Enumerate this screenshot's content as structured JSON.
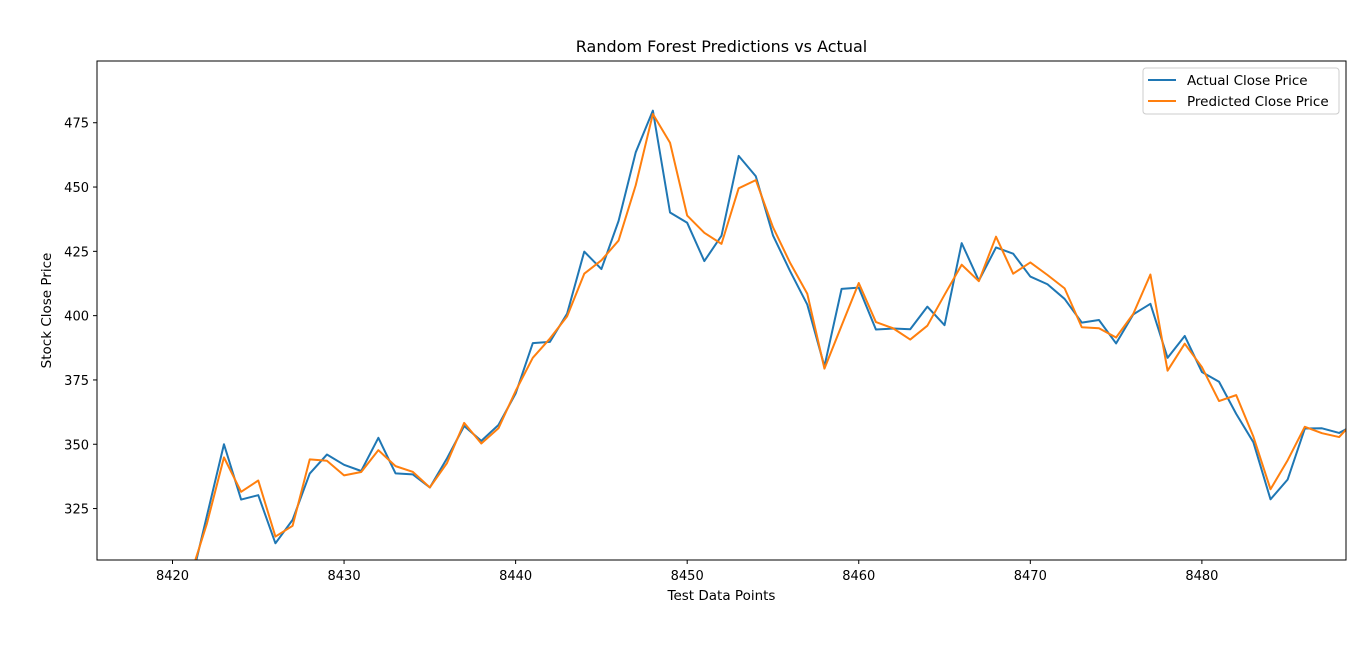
{
  "chart_data": {
    "type": "line",
    "title": "Random Forest Predictions vs Actual",
    "xlabel": "Test Data Points",
    "ylabel": "Stock Close Price",
    "xlim": [
      8415.6,
      8488.4
    ],
    "ylim": [
      305,
      499
    ],
    "xticks": [
      8420,
      8430,
      8440,
      8450,
      8460,
      8470,
      8480
    ],
    "yticks": [
      325,
      350,
      375,
      400,
      425,
      450,
      475
    ],
    "grid": false,
    "legend_position": "top-right",
    "x": [
      8421,
      8422,
      8423,
      8424,
      8425,
      8426,
      8427,
      8428,
      8429,
      8430,
      8431,
      8432,
      8433,
      8434,
      8435,
      8436,
      8437,
      8438,
      8439,
      8440,
      8441,
      8442,
      8443,
      8444,
      8445,
      8446,
      8447,
      8448,
      8449,
      8450,
      8451,
      8452,
      8453,
      8454,
      8455,
      8456,
      8457,
      8458,
      8459,
      8460,
      8461,
      8462,
      8463,
      8464,
      8465,
      8466,
      8467,
      8468,
      8469,
      8470,
      8471,
      8472,
      8473,
      8474,
      8475,
      8476,
      8477,
      8478,
      8479,
      8480,
      8481,
      8482,
      8483,
      8484,
      8485,
      8486,
      8487,
      8488,
      8489
    ],
    "series": [
      {
        "name": "Actual Close Price",
        "color": "#1f77b4",
        "values": [
          294,
          322,
          350,
          328.5,
          330.2,
          311.5,
          320.6,
          338.6,
          346,
          342,
          339.6,
          352.5,
          338.7,
          338.3,
          333.2,
          344.5,
          357.1,
          351.3,
          357.5,
          369.7,
          389.3,
          389.8,
          400.8,
          424.9,
          418.1,
          436.8,
          463.5,
          479.7,
          440.1,
          436.1,
          421.2,
          431.1,
          462.1,
          454.2,
          431.2,
          417.3,
          404.3,
          380.3,
          410.4,
          410.9,
          394.6,
          395,
          394.7,
          403.5,
          396.3,
          428.2,
          413.6,
          426.5,
          424.1,
          415.2,
          412.2,
          406.5,
          397.3,
          398.3,
          389.2,
          400.5,
          404.6,
          383.6,
          392.1,
          378.1,
          374.3,
          361.8,
          350.8,
          328.6,
          336.3,
          356.1,
          356.2,
          354.4,
          358
        ]
      },
      {
        "name": "Predicted Close Price",
        "color": "#ff7f0e",
        "values": [
          298,
          319,
          344.9,
          331.5,
          335.9,
          314.1,
          318.3,
          344.1,
          343.6,
          337.9,
          339.2,
          347.7,
          341.5,
          339.3,
          333.2,
          342.7,
          358.3,
          350.3,
          356.2,
          370.7,
          383.6,
          391.1,
          399.7,
          416.3,
          421.5,
          429.2,
          450.7,
          478.4,
          467.2,
          438.9,
          432.2,
          427.9,
          449.5,
          452.7,
          434.4,
          420.5,
          408.5,
          379.4,
          396.1,
          412.7,
          397.5,
          395.1,
          390.7,
          396.1,
          408.1,
          419.8,
          413.4,
          430.7,
          416.3,
          420.7,
          415.8,
          410.6,
          395.5,
          395.1,
          391.5,
          400.7,
          416,
          378.6,
          389.1,
          380,
          366.8,
          369.1,
          353,
          332.5,
          343.8,
          356.8,
          354.3,
          352.8,
          360
        ]
      }
    ]
  }
}
